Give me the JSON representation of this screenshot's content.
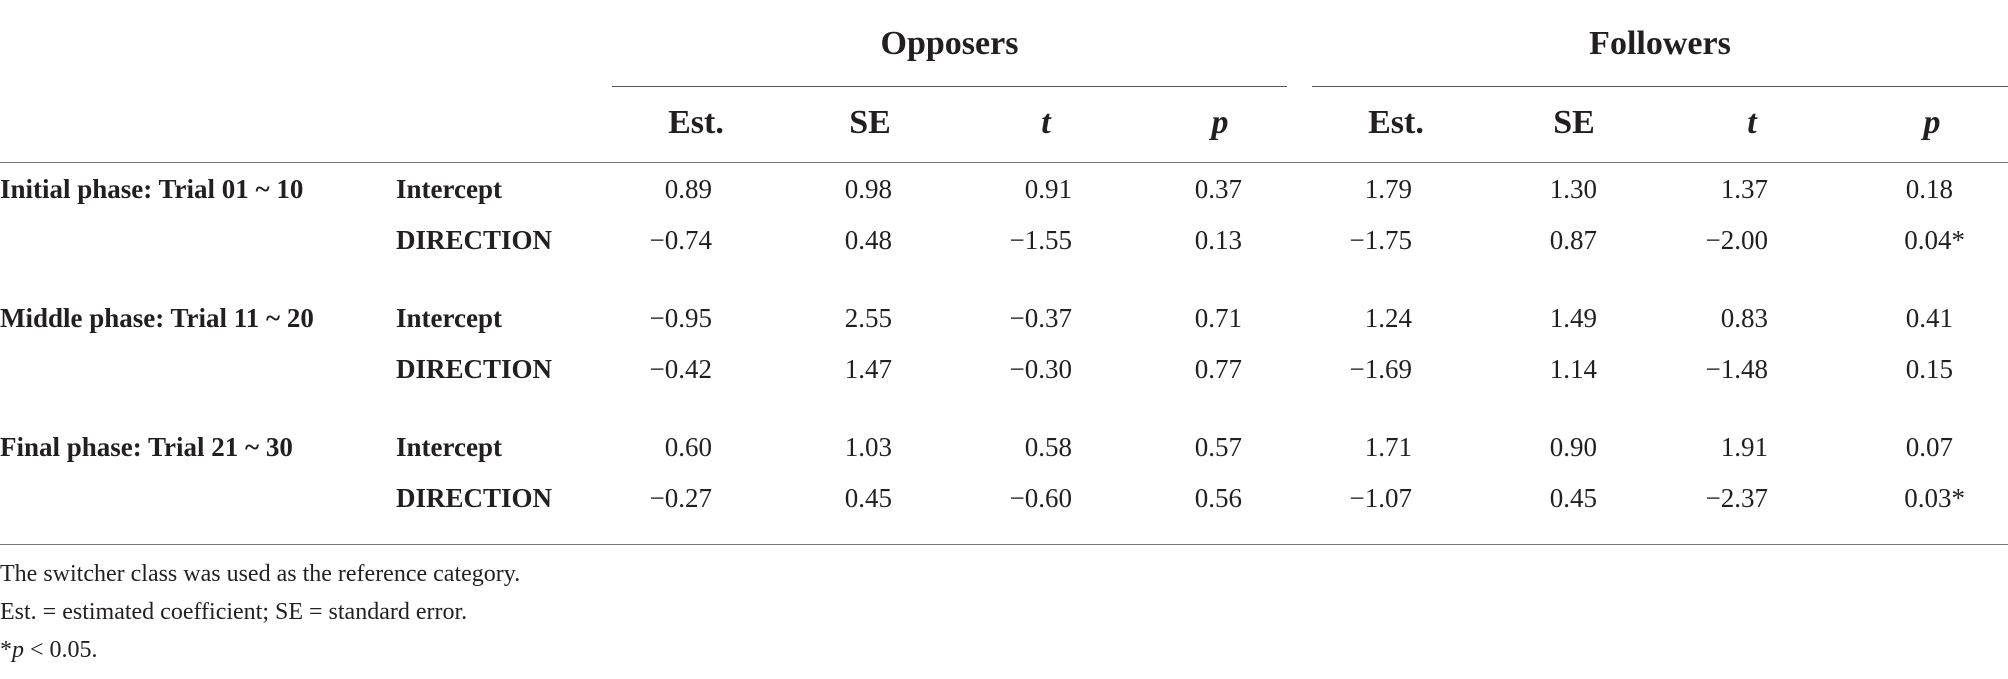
{
  "groups": [
    {
      "label": "Opposers"
    },
    {
      "label": "Followers"
    }
  ],
  "columns": [
    {
      "label": "Est.",
      "italic": false
    },
    {
      "label": "SE",
      "italic": false
    },
    {
      "label": "t",
      "italic": true
    },
    {
      "label": "p",
      "italic": true
    },
    {
      "label": "Est.",
      "italic": false
    },
    {
      "label": "SE",
      "italic": false
    },
    {
      "label": "t",
      "italic": true
    },
    {
      "label": "p",
      "italic": true
    }
  ],
  "rows": [
    {
      "phase": "Initial phase: Trial 01 ~ 10",
      "term": "Intercept",
      "values": [
        "0.89",
        "0.98",
        "0.91",
        "0.37",
        "1.79",
        "1.30",
        "1.37",
        "0.18"
      ]
    },
    {
      "phase": "",
      "term": "DIRECTION",
      "values": [
        "−0.74",
        "0.48",
        "−1.55",
        "0.13",
        "−1.75",
        "0.87",
        "−2.00",
        "0.04*"
      ]
    },
    {
      "phase": "Middle phase: Trial 11 ~ 20",
      "term": "Intercept",
      "values": [
        "−0.95",
        "2.55",
        "−0.37",
        "0.71",
        "1.24",
        "1.49",
        "0.83",
        "0.41"
      ]
    },
    {
      "phase": "",
      "term": "DIRECTION",
      "values": [
        "−0.42",
        "1.47",
        "−0.30",
        "0.77",
        "−1.69",
        "1.14",
        "−1.48",
        "0.15"
      ]
    },
    {
      "phase": "Final phase: Trial 21 ~ 30",
      "term": "Intercept",
      "values": [
        "0.60",
        "1.03",
        "0.58",
        "0.57",
        "1.71",
        "0.90",
        "1.91",
        "0.07"
      ]
    },
    {
      "phase": "",
      "term": "DIRECTION",
      "values": [
        "−0.27",
        "0.45",
        "−0.60",
        "0.56",
        "−1.07",
        "0.45",
        "−2.37",
        "0.03*"
      ]
    }
  ],
  "notes": {
    "line1": "The switcher class was used as the reference category.",
    "line2": "Est. = estimated coefficient; SE = standard error.",
    "line3_prefix": "*",
    "line3_italic": "p",
    "line3_rest": " < 0.05."
  }
}
